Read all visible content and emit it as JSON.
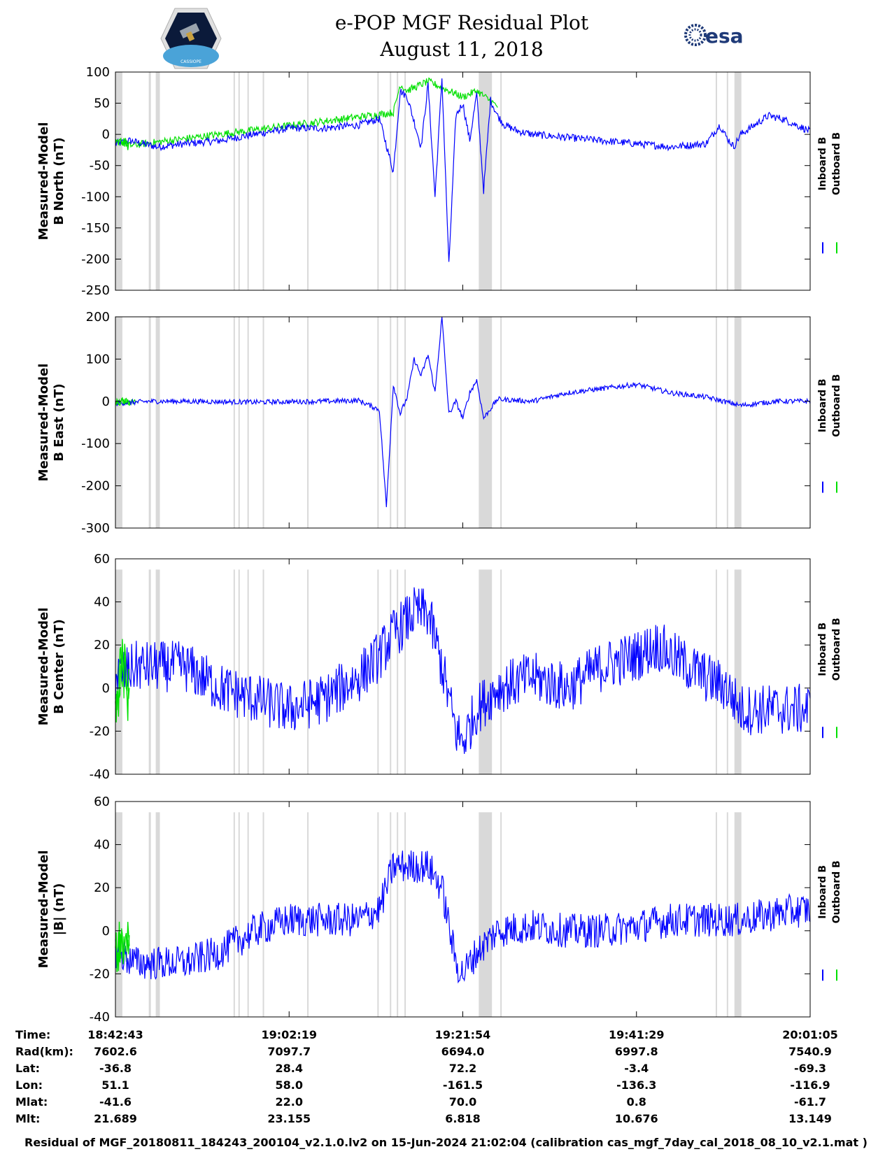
{
  "title": {
    "line1": "e-POP MGF Residual Plot",
    "line2": "August 11, 2018"
  },
  "logos": {
    "left_icon": "cassiope-satellite-logo",
    "right_icon": "esa-logo",
    "right_text": "esa",
    "left_text": "CASSIOPE"
  },
  "colors": {
    "inboard": "#0000ff",
    "outboard": "#00e000",
    "gap_shading": "#d9d9d9"
  },
  "legend": {
    "inboard_label": "Inboard B",
    "outboard_label": "Outboard B"
  },
  "chart_data": [
    {
      "type": "line",
      "ylabel_line1": "Measured-Model",
      "ylabel_line2": "B North (nT)",
      "ylim": [
        -250,
        100
      ],
      "yticks": [
        -250,
        -200,
        -150,
        -100,
        -50,
        0,
        50,
        100
      ],
      "ytick_labels": [
        "-250",
        "-200",
        "-150",
        "-100",
        "-50",
        "0",
        "50",
        "100"
      ],
      "series": [
        {
          "name": "Inboard B",
          "x": [
            0,
            0.02,
            0.06,
            0.1,
            0.15,
            0.2,
            0.25,
            0.3,
            0.35,
            0.38,
            0.4,
            0.41,
            0.42,
            0.43,
            0.44,
            0.45,
            0.46,
            0.47,
            0.48,
            0.49,
            0.5,
            0.51,
            0.52,
            0.53,
            0.54,
            0.55,
            0.56,
            0.58,
            0.6,
            0.65,
            0.7,
            0.75,
            0.8,
            0.85,
            0.87,
            0.88,
            0.89,
            0.9,
            0.92,
            0.94,
            0.96,
            0.98,
            1.0
          ],
          "y": [
            -15,
            -10,
            -20,
            -15,
            -10,
            0,
            10,
            10,
            15,
            25,
            -60,
            70,
            60,
            20,
            -20,
            80,
            -100,
            90,
            -210,
            30,
            50,
            -10,
            65,
            -90,
            55,
            30,
            15,
            5,
            0,
            -5,
            -10,
            -15,
            -20,
            -15,
            15,
            -5,
            -20,
            0,
            15,
            30,
            25,
            15,
            5
          ]
        },
        {
          "name": "Outboard B",
          "x": [
            0,
            0.01,
            0.02,
            0.4,
            0.41,
            0.42,
            0.45,
            0.5,
            0.52,
            0.55
          ],
          "y": [
            -15,
            -12,
            -18,
            35,
            80,
            70,
            85,
            60,
            70,
            45
          ]
        }
      ]
    },
    {
      "type": "line",
      "ylabel_line1": "Measured-Model",
      "ylabel_line2": "B East (nT)",
      "ylim": [
        -300,
        200
      ],
      "yticks": [
        -300,
        -200,
        -100,
        0,
        100,
        200
      ],
      "ytick_labels": [
        "-300",
        "-200",
        "-100",
        "0",
        "100",
        "200"
      ],
      "series": [
        {
          "name": "Inboard B",
          "x": [
            0,
            0.05,
            0.1,
            0.2,
            0.3,
            0.35,
            0.38,
            0.39,
            0.4,
            0.41,
            0.42,
            0.43,
            0.44,
            0.45,
            0.46,
            0.47,
            0.48,
            0.49,
            0.5,
            0.51,
            0.52,
            0.53,
            0.55,
            0.6,
            0.65,
            0.7,
            0.75,
            0.8,
            0.85,
            0.9,
            0.95,
            1.0
          ],
          "y": [
            -5,
            0,
            0,
            -2,
            0,
            2,
            -20,
            -250,
            40,
            -30,
            10,
            100,
            60,
            110,
            20,
            200,
            -30,
            0,
            -40,
            20,
            50,
            -40,
            5,
            0,
            20,
            30,
            40,
            20,
            10,
            -10,
            0,
            0
          ]
        },
        {
          "name": "Outboard B",
          "x": [
            0,
            0.01,
            0.02,
            0.03
          ],
          "y": [
            -5,
            0,
            -3,
            0
          ]
        }
      ]
    },
    {
      "type": "line",
      "ylabel_line1": "Measured-Model",
      "ylabel_line2": "B Center (nT)",
      "ylim": [
        -40,
        60
      ],
      "yticks": [
        -40,
        -20,
        0,
        20,
        40,
        60
      ],
      "ytick_labels": [
        "-40",
        "-20",
        "0",
        "20",
        "40",
        "60"
      ],
      "series": [
        {
          "name": "Inboard B",
          "x": [
            0,
            0.03,
            0.06,
            0.1,
            0.15,
            0.2,
            0.25,
            0.3,
            0.35,
            0.38,
            0.4,
            0.43,
            0.45,
            0.47,
            0.49,
            0.5,
            0.52,
            0.55,
            0.6,
            0.65,
            0.7,
            0.75,
            0.78,
            0.8,
            0.85,
            0.88,
            0.9,
            0.95,
            1.0
          ],
          "y": [
            5,
            10,
            10,
            10,
            0,
            -5,
            -10,
            -5,
            5,
            15,
            25,
            35,
            35,
            10,
            -20,
            -25,
            -10,
            0,
            5,
            0,
            10,
            15,
            20,
            15,
            5,
            0,
            -10,
            -10,
            -10
          ]
        },
        {
          "name": "Outboard B",
          "x": [
            0,
            0.01,
            0.02
          ],
          "y": [
            0,
            5,
            2
          ]
        }
      ]
    },
    {
      "type": "line",
      "ylabel_line1": "Measured-Model",
      "ylabel_line2": "|B| (nT)",
      "ylim": [
        -40,
        60
      ],
      "yticks": [
        -40,
        -20,
        0,
        20,
        40,
        60
      ],
      "ytick_labels": [
        "-40",
        "-20",
        "0",
        "20",
        "40",
        "60"
      ],
      "series": [
        {
          "name": "Inboard B",
          "x": [
            0,
            0.03,
            0.06,
            0.1,
            0.15,
            0.2,
            0.25,
            0.3,
            0.35,
            0.38,
            0.4,
            0.43,
            0.45,
            0.47,
            0.49,
            0.5,
            0.52,
            0.55,
            0.6,
            0.65,
            0.7,
            0.75,
            0.8,
            0.85,
            0.9,
            0.95,
            1.0
          ],
          "y": [
            -10,
            -15,
            -15,
            -15,
            -10,
            0,
            5,
            5,
            5,
            10,
            30,
            30,
            30,
            20,
            -15,
            -20,
            -10,
            0,
            2,
            0,
            0,
            2,
            5,
            5,
            5,
            8,
            10
          ]
        },
        {
          "name": "Outboard B",
          "x": [
            0,
            0.01,
            0.02
          ],
          "y": [
            -10,
            -5,
            -8
          ]
        }
      ]
    }
  ],
  "gaps": [
    [
      0.0,
      0.01
    ],
    [
      0.048,
      0.051
    ],
    [
      0.058,
      0.064
    ],
    [
      0.177,
      0.179
    ],
    [
      0.17,
      0.172
    ],
    [
      0.19,
      0.192
    ],
    [
      0.212,
      0.214
    ],
    [
      0.276,
      0.278
    ],
    [
      0.377,
      0.379
    ],
    [
      0.395,
      0.397
    ],
    [
      0.405,
      0.407
    ],
    [
      0.416,
      0.418
    ],
    [
      0.523,
      0.542
    ],
    [
      0.554,
      0.556
    ],
    [
      0.864,
      0.866
    ],
    [
      0.88,
      0.882
    ],
    [
      0.891,
      0.901
    ]
  ],
  "info_table": {
    "row_labels": [
      "Time:",
      "Rad(km):",
      "Lat:",
      "Lon:",
      "Mlat:",
      "Mlt:"
    ],
    "columns": [
      [
        "18:42:43",
        "7602.6",
        "-36.8",
        "51.1",
        "-41.6",
        "21.689"
      ],
      [
        "19:02:19",
        "7097.7",
        "28.4",
        "58.0",
        "22.0",
        "23.155"
      ],
      [
        "19:21:54",
        "6694.0",
        "72.2",
        "-161.5",
        "70.0",
        "6.818"
      ],
      [
        "19:41:29",
        "6997.8",
        "-3.4",
        "-136.3",
        "0.8",
        "10.676"
      ],
      [
        "20:01:05",
        "7540.9",
        "-69.3",
        "-116.9",
        "-61.7",
        "13.149"
      ]
    ]
  },
  "footer": "Residual of MGF_20180811_184243_200104_v2.1.0.lv2 on 15-Jun-2024 21:02:04 (calibration cas_mgf_7day_cal_2018_08_10_v2.1.mat )"
}
